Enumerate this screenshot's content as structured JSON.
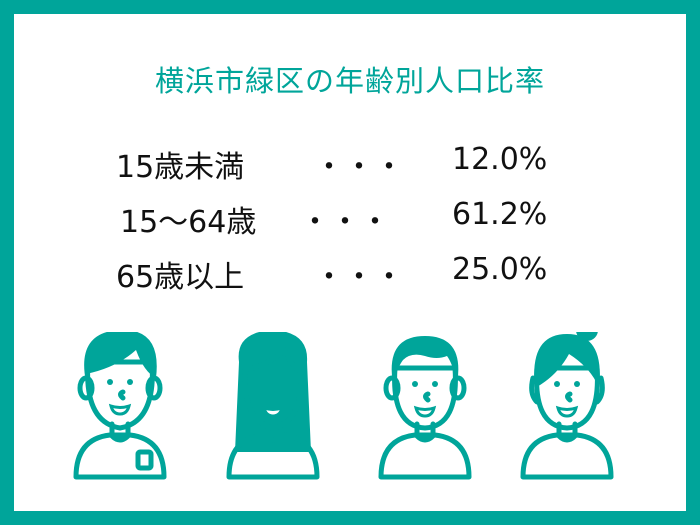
{
  "title": "横浜市緑区の年齢別人口比率",
  "rows": [
    {
      "label": "15歳未満",
      "dots": "・・・",
      "value": "12.0%"
    },
    {
      "label": "15～64歳",
      "dots": "・・・",
      "value": "61.2%"
    },
    {
      "label": "65歳以上",
      "dots": "・・・",
      "value": "25.0%"
    }
  ],
  "colors": {
    "accent": "#00a59a",
    "shirt": "#fff100"
  },
  "illustrations": [
    "boy-icon",
    "long-hair-girl-icon",
    "man-icon",
    "bun-hair-woman-icon"
  ]
}
